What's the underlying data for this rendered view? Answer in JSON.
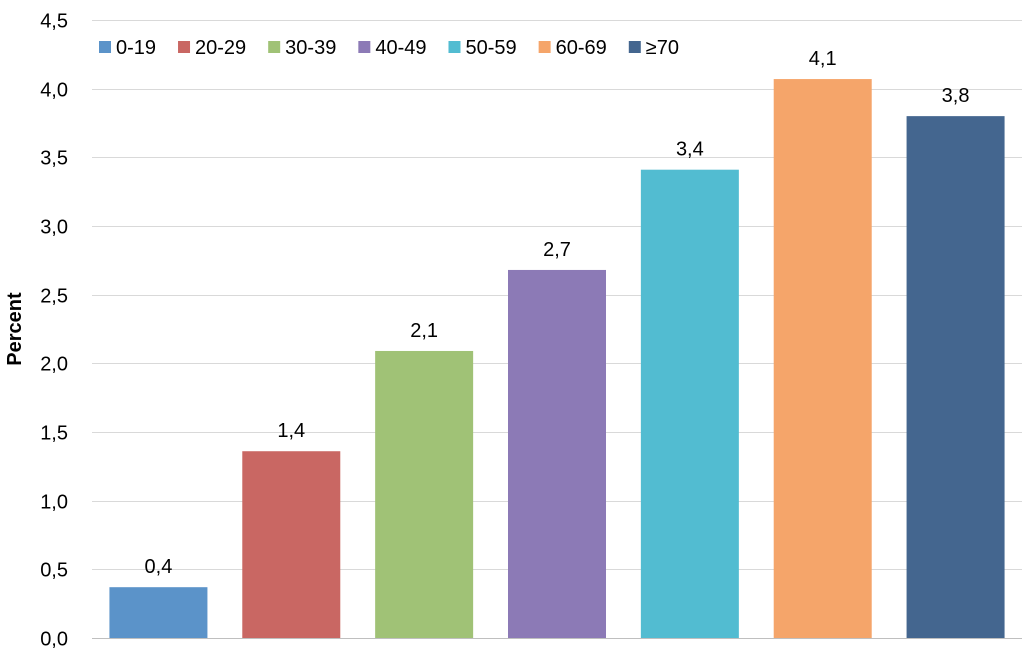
{
  "chart_data": {
    "type": "bar",
    "title": "",
    "xlabel": "",
    "ylabel": "Percent",
    "ylim": [
      0,
      4.5
    ],
    "ytick_step": 0.5,
    "ytick_labels": [
      "0,0",
      "0,5",
      "1,0",
      "1,5",
      "2,0",
      "2,5",
      "3,0",
      "3,5",
      "4,0",
      "4,5"
    ],
    "grid": true,
    "legend_position": "top",
    "categories": [
      "0-19",
      "20-29",
      "30-39",
      "40-49",
      "50-59",
      "60-69",
      "≥70"
    ],
    "values": [
      0.37,
      1.36,
      2.09,
      2.68,
      3.41,
      4.07,
      3.8
    ],
    "value_labels": [
      "0,4",
      "1,4",
      "2,1",
      "2,7",
      "3,4",
      "4,1",
      "3,8"
    ],
    "colors": [
      "#5b93c9",
      "#c96763",
      "#a0c276",
      "#8c7ab6",
      "#52bcd1",
      "#f5a56a",
      "#44668f"
    ]
  }
}
